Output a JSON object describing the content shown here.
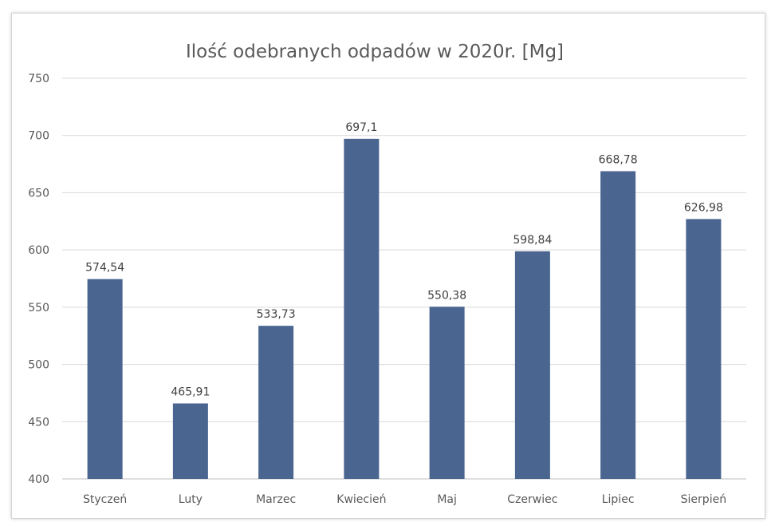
{
  "chart_data": {
    "type": "bar",
    "title": "Ilość odebranych odpadów w 2020r. [Mg]",
    "xlabel": "",
    "ylabel": "",
    "categories": [
      "Styczeń",
      "Luty",
      "Marzec",
      "Kwiecień",
      "Maj",
      "Czerwiec",
      "Lipiec",
      "Sierpień"
    ],
    "values": [
      574.54,
      465.91,
      533.73,
      697.1,
      550.38,
      598.84,
      668.78,
      626.98
    ],
    "data_labels": [
      "574,54",
      "465,91",
      "533,73",
      "697,1",
      "550,38",
      "598,84",
      "668,78",
      "626,98"
    ],
    "ylim": [
      400,
      750
    ],
    "yticks": [
      400,
      450,
      500,
      550,
      600,
      650,
      700,
      750
    ],
    "grid": true,
    "legend": "none",
    "bar_color": "#4a6590",
    "grid_color": "#d9d9d9"
  }
}
